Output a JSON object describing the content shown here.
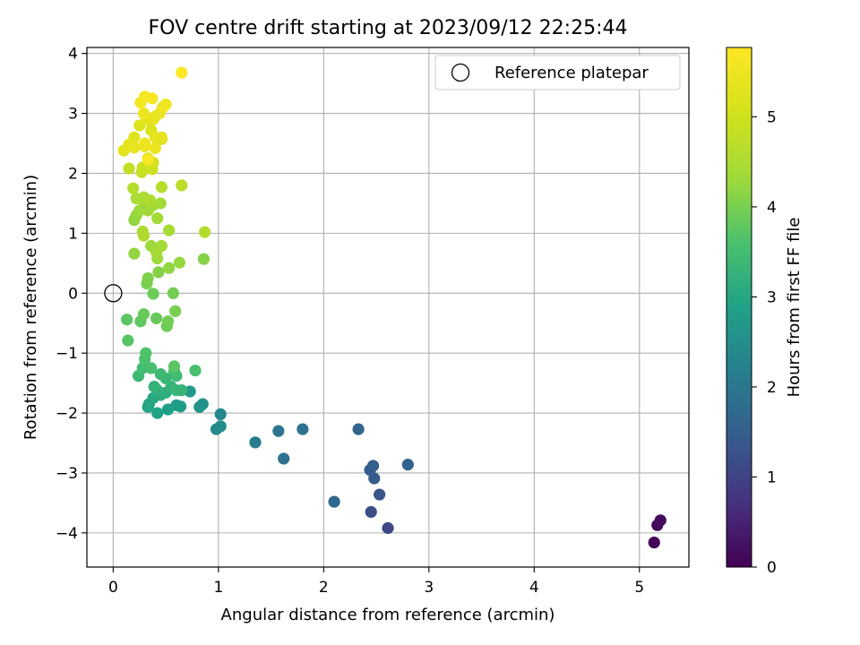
{
  "chart_data": {
    "type": "scatter",
    "title": "FOV centre drift starting at 2023/09/12 22:25:44",
    "xlabel": "Angular distance from reference (arcmin)",
    "ylabel": "Rotation from reference (arcmin)",
    "xlim": [
      -0.25,
      5.47
    ],
    "ylim": [
      -4.57,
      4.1
    ],
    "x_ticks": [
      0,
      1,
      2,
      3,
      4,
      5
    ],
    "y_ticks": [
      -4,
      -3,
      -2,
      -1,
      0,
      1,
      2,
      3,
      4
    ],
    "x_tick_labels": [
      "0",
      "1",
      "2",
      "3",
      "4",
      "5"
    ],
    "y_tick_labels": [
      "−4",
      "−3",
      "−2",
      "−1",
      "0",
      "1",
      "2",
      "3",
      "4"
    ],
    "grid": true,
    "legend": {
      "placement": "top-right",
      "label": "Reference platepar"
    },
    "reference_point": {
      "x": 0,
      "y": 0
    },
    "colorbar": {
      "label": "Hours from first FF file",
      "range": [
        0,
        5.77
      ],
      "ticks": [
        0,
        1,
        2,
        3,
        4,
        5
      ],
      "tick_labels": [
        "0",
        "1",
        "2",
        "3",
        "4",
        "5"
      ],
      "colormap": "viridis"
    },
    "points": [
      {
        "x": 5.14,
        "y": -4.16,
        "h": 0.05
      },
      {
        "x": 5.17,
        "y": -3.87,
        "h": 0.1
      },
      {
        "x": 5.2,
        "y": -3.79,
        "h": 0.15
      },
      {
        "x": 2.61,
        "y": -3.92,
        "h": 1.1
      },
      {
        "x": 2.45,
        "y": -3.65,
        "h": 1.2
      },
      {
        "x": 2.53,
        "y": -3.36,
        "h": 1.3
      },
      {
        "x": 2.48,
        "y": -3.09,
        "h": 1.4
      },
      {
        "x": 2.44,
        "y": -2.95,
        "h": 1.45
      },
      {
        "x": 2.47,
        "y": -2.88,
        "h": 1.5
      },
      {
        "x": 2.8,
        "y": -2.86,
        "h": 1.55
      },
      {
        "x": 2.33,
        "y": -2.27,
        "h": 1.6
      },
      {
        "x": 2.1,
        "y": -3.48,
        "h": 1.7
      },
      {
        "x": 1.62,
        "y": -2.76,
        "h": 1.85
      },
      {
        "x": 1.57,
        "y": -2.3,
        "h": 1.95
      },
      {
        "x": 1.8,
        "y": -2.27,
        "h": 1.9
      },
      {
        "x": 1.35,
        "y": -2.49,
        "h": 2.1
      },
      {
        "x": 1.02,
        "y": -2.02,
        "h": 2.35
      },
      {
        "x": 0.98,
        "y": -2.27,
        "h": 2.4
      },
      {
        "x": 1.02,
        "y": -2.22,
        "h": 2.45
      },
      {
        "x": 0.85,
        "y": -1.85,
        "h": 2.55
      },
      {
        "x": 0.82,
        "y": -1.9,
        "h": 2.6
      },
      {
        "x": 0.73,
        "y": -1.64,
        "h": 2.7
      },
      {
        "x": 0.64,
        "y": -1.89,
        "h": 2.75
      },
      {
        "x": 0.6,
        "y": -1.87,
        "h": 2.8
      },
      {
        "x": 0.52,
        "y": -1.94,
        "h": 2.85
      },
      {
        "x": 0.42,
        "y": -2.0,
        "h": 2.9
      },
      {
        "x": 0.34,
        "y": -1.85,
        "h": 2.95
      },
      {
        "x": 0.33,
        "y": -1.9,
        "h": 3.0
      },
      {
        "x": 0.38,
        "y": -1.75,
        "h": 3.05
      },
      {
        "x": 0.45,
        "y": -1.7,
        "h": 3.1
      },
      {
        "x": 0.5,
        "y": -1.66,
        "h": 3.15
      },
      {
        "x": 0.42,
        "y": -1.62,
        "h": 3.2
      },
      {
        "x": 0.39,
        "y": -1.56,
        "h": 3.25
      },
      {
        "x": 0.55,
        "y": -1.56,
        "h": 3.3
      },
      {
        "x": 0.6,
        "y": -1.62,
        "h": 3.35
      },
      {
        "x": 0.65,
        "y": -1.62,
        "h": 3.3
      },
      {
        "x": 0.5,
        "y": -1.42,
        "h": 3.35
      },
      {
        "x": 0.45,
        "y": -1.35,
        "h": 3.4
      },
      {
        "x": 0.6,
        "y": -1.38,
        "h": 3.45
      },
      {
        "x": 0.58,
        "y": -1.3,
        "h": 3.5
      },
      {
        "x": 0.58,
        "y": -1.22,
        "h": 3.75
      },
      {
        "x": 0.78,
        "y": -1.29,
        "h": 3.55
      },
      {
        "x": 0.24,
        "y": -1.38,
        "h": 3.4
      },
      {
        "x": 0.28,
        "y": -1.25,
        "h": 3.5
      },
      {
        "x": 0.36,
        "y": -1.25,
        "h": 3.55
      },
      {
        "x": 0.3,
        "y": -1.1,
        "h": 3.6
      },
      {
        "x": 0.31,
        "y": -1.0,
        "h": 3.65
      },
      {
        "x": 0.14,
        "y": -0.79,
        "h": 3.7
      },
      {
        "x": 0.13,
        "y": -0.44,
        "h": 3.75
      },
      {
        "x": 0.26,
        "y": -0.47,
        "h": 3.8
      },
      {
        "x": 0.29,
        "y": -0.35,
        "h": 3.85
      },
      {
        "x": 0.41,
        "y": -0.42,
        "h": 3.85
      },
      {
        "x": 0.51,
        "y": -0.55,
        "h": 3.9
      },
      {
        "x": 0.52,
        "y": -0.47,
        "h": 3.95
      },
      {
        "x": 0.59,
        "y": -0.3,
        "h": 4.0
      },
      {
        "x": 0.38,
        "y": -0.01,
        "h": 3.9
      },
      {
        "x": 0.57,
        "y": 0.0,
        "h": 3.95
      },
      {
        "x": 0.32,
        "y": 0.16,
        "h": 4.0
      },
      {
        "x": 0.33,
        "y": 0.25,
        "h": 4.05
      },
      {
        "x": 0.43,
        "y": 0.35,
        "h": 4.1
      },
      {
        "x": 0.53,
        "y": 0.42,
        "h": 4.2
      },
      {
        "x": 0.63,
        "y": 0.51,
        "h": 4.25
      },
      {
        "x": 0.86,
        "y": 0.57,
        "h": 4.1
      },
      {
        "x": 0.2,
        "y": 0.66,
        "h": 4.2
      },
      {
        "x": 0.42,
        "y": 0.58,
        "h": 4.3
      },
      {
        "x": 0.36,
        "y": 0.79,
        "h": 4.3
      },
      {
        "x": 0.46,
        "y": 0.79,
        "h": 4.35
      },
      {
        "x": 0.41,
        "y": 0.68,
        "h": 4.4
      },
      {
        "x": 0.53,
        "y": 1.05,
        "h": 4.45
      },
      {
        "x": 0.28,
        "y": 1.03,
        "h": 4.5
      },
      {
        "x": 0.29,
        "y": 0.96,
        "h": 4.55
      },
      {
        "x": 0.87,
        "y": 1.02,
        "h": 4.6
      },
      {
        "x": 0.2,
        "y": 1.22,
        "h": 4.2
      },
      {
        "x": 0.22,
        "y": 1.3,
        "h": 4.25
      },
      {
        "x": 0.25,
        "y": 1.38,
        "h": 4.3
      },
      {
        "x": 0.33,
        "y": 1.38,
        "h": 4.35
      },
      {
        "x": 0.42,
        "y": 1.25,
        "h": 4.4
      },
      {
        "x": 0.3,
        "y": 1.5,
        "h": 4.3
      },
      {
        "x": 0.38,
        "y": 1.47,
        "h": 4.35
      },
      {
        "x": 0.45,
        "y": 1.5,
        "h": 4.4
      },
      {
        "x": 0.22,
        "y": 1.58,
        "h": 4.45
      },
      {
        "x": 0.29,
        "y": 1.6,
        "h": 4.5
      },
      {
        "x": 0.35,
        "y": 1.55,
        "h": 4.55
      },
      {
        "x": 0.19,
        "y": 1.75,
        "h": 4.6
      },
      {
        "x": 0.46,
        "y": 1.77,
        "h": 4.65
      },
      {
        "x": 0.65,
        "y": 1.8,
        "h": 4.7
      },
      {
        "x": 0.15,
        "y": 2.08,
        "h": 4.8
      },
      {
        "x": 0.27,
        "y": 2.02,
        "h": 4.85
      },
      {
        "x": 0.28,
        "y": 2.1,
        "h": 4.9
      },
      {
        "x": 0.37,
        "y": 2.07,
        "h": 4.95
      },
      {
        "x": 0.38,
        "y": 2.18,
        "h": 5.0
      },
      {
        "x": 0.33,
        "y": 2.25,
        "h": 5.05
      },
      {
        "x": 0.46,
        "y": 2.57,
        "h": 5.1
      },
      {
        "x": 0.36,
        "y": 2.72,
        "h": 5.15
      },
      {
        "x": 0.25,
        "y": 2.8,
        "h": 5.2
      },
      {
        "x": 0.2,
        "y": 2.6,
        "h": 5.25
      },
      {
        "x": 0.1,
        "y": 2.38,
        "h": 5.3
      },
      {
        "x": 0.15,
        "y": 2.48,
        "h": 5.35
      },
      {
        "x": 0.2,
        "y": 2.43,
        "h": 5.4
      },
      {
        "x": 0.3,
        "y": 2.45,
        "h": 5.45
      },
      {
        "x": 0.3,
        "y": 2.5,
        "h": 5.5
      },
      {
        "x": 0.4,
        "y": 2.42,
        "h": 5.45
      },
      {
        "x": 0.4,
        "y": 2.6,
        "h": 5.4
      },
      {
        "x": 0.46,
        "y": 2.6,
        "h": 5.35
      },
      {
        "x": 0.32,
        "y": 2.9,
        "h": 5.3
      },
      {
        "x": 0.38,
        "y": 2.9,
        "h": 5.35
      },
      {
        "x": 0.4,
        "y": 2.95,
        "h": 5.4
      },
      {
        "x": 0.44,
        "y": 3.0,
        "h": 5.45
      },
      {
        "x": 0.47,
        "y": 3.1,
        "h": 5.5
      },
      {
        "x": 0.5,
        "y": 3.15,
        "h": 5.55
      },
      {
        "x": 0.29,
        "y": 3.0,
        "h": 5.5
      },
      {
        "x": 0.26,
        "y": 3.18,
        "h": 5.6
      },
      {
        "x": 0.3,
        "y": 3.28,
        "h": 5.6
      },
      {
        "x": 0.37,
        "y": 3.25,
        "h": 5.65
      },
      {
        "x": 0.33,
        "y": 2.23,
        "h": 5.7
      },
      {
        "x": 0.65,
        "y": 3.68,
        "h": 5.75
      }
    ]
  }
}
